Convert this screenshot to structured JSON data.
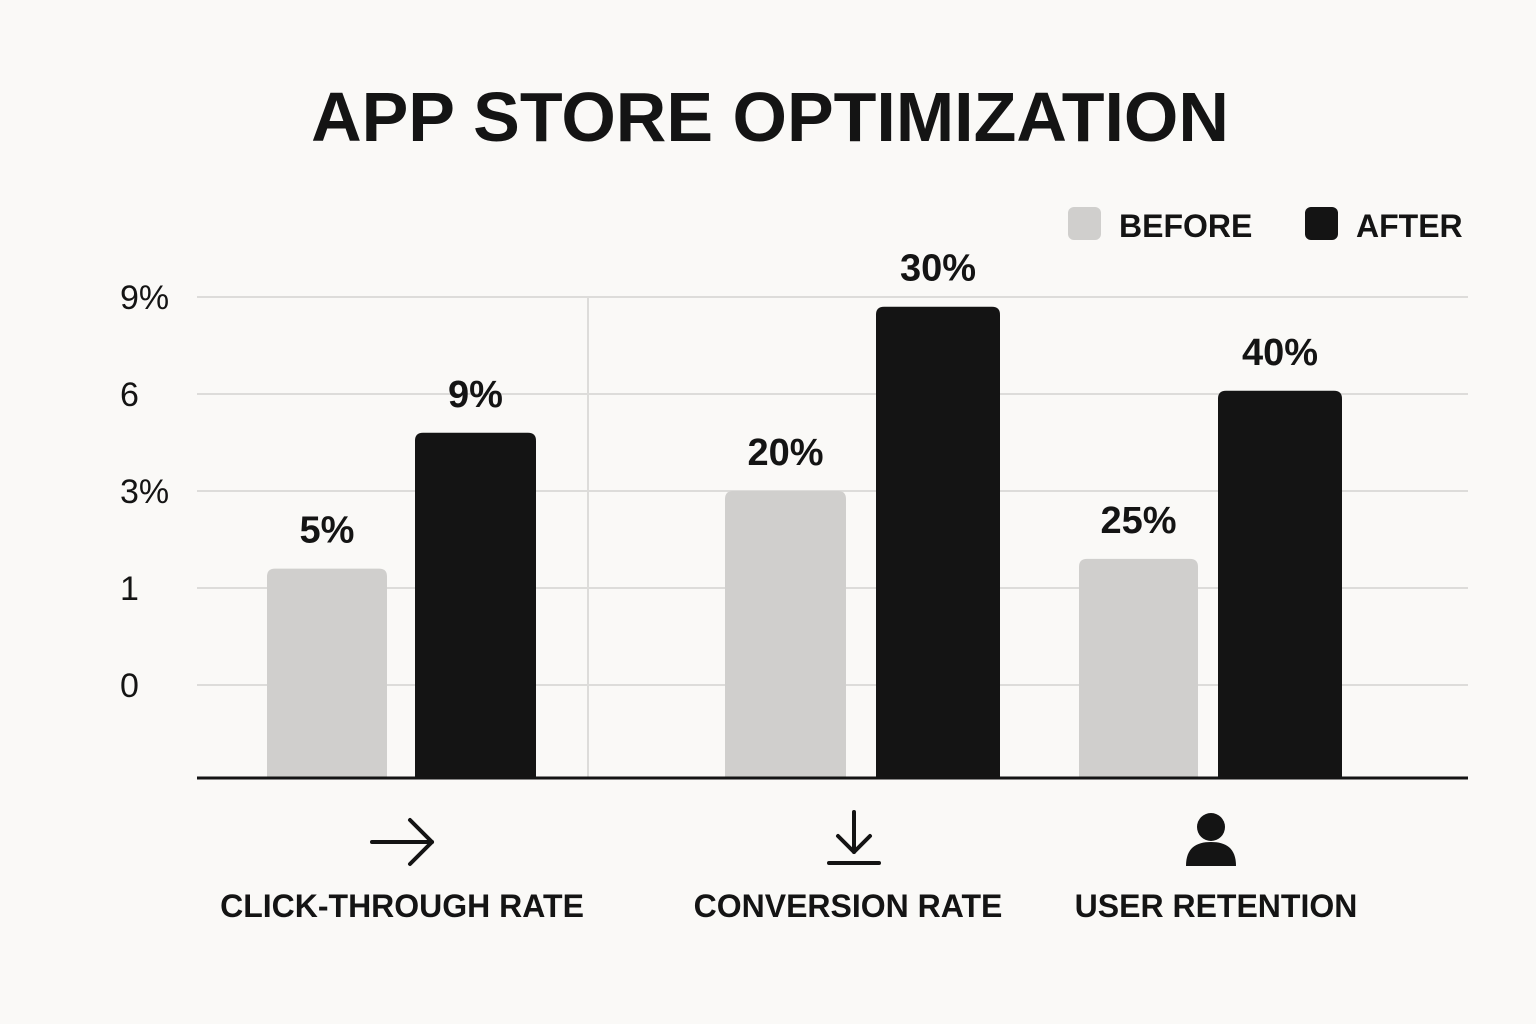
{
  "chart_data": {
    "type": "bar",
    "title": "APP STORE OPTIMIZATION",
    "xlabel": "",
    "ylabel": "",
    "categories": [
      "CLICK-THROUGH RATE",
      "CONVERSION RATE",
      "USER RETENTION"
    ],
    "category_icons": [
      "arrow-right-icon",
      "download-icon",
      "user-icon"
    ],
    "series": [
      {
        "name": "BEFORE",
        "color": "#d0cfcd",
        "values": [
          5,
          20,
          25
        ],
        "value_labels": [
          "5%",
          "20%",
          "25%"
        ],
        "plotted_levels": [
          1.4,
          3.0,
          1.6
        ]
      },
      {
        "name": "AFTER",
        "color": "#141414",
        "values": [
          9,
          30,
          40
        ],
        "value_labels": [
          "9%",
          "30%",
          "40%"
        ],
        "plotted_levels": [
          4.8,
          8.7,
          6.1
        ]
      }
    ],
    "y_ticks": [
      {
        "label": "9%",
        "value": 9
      },
      {
        "label": "6",
        "value": 6
      },
      {
        "label": "3%",
        "value": 3
      },
      {
        "label": "1",
        "value": 1
      },
      {
        "label": "0",
        "value": 0
      }
    ],
    "grid": true,
    "legend": "top-right"
  }
}
